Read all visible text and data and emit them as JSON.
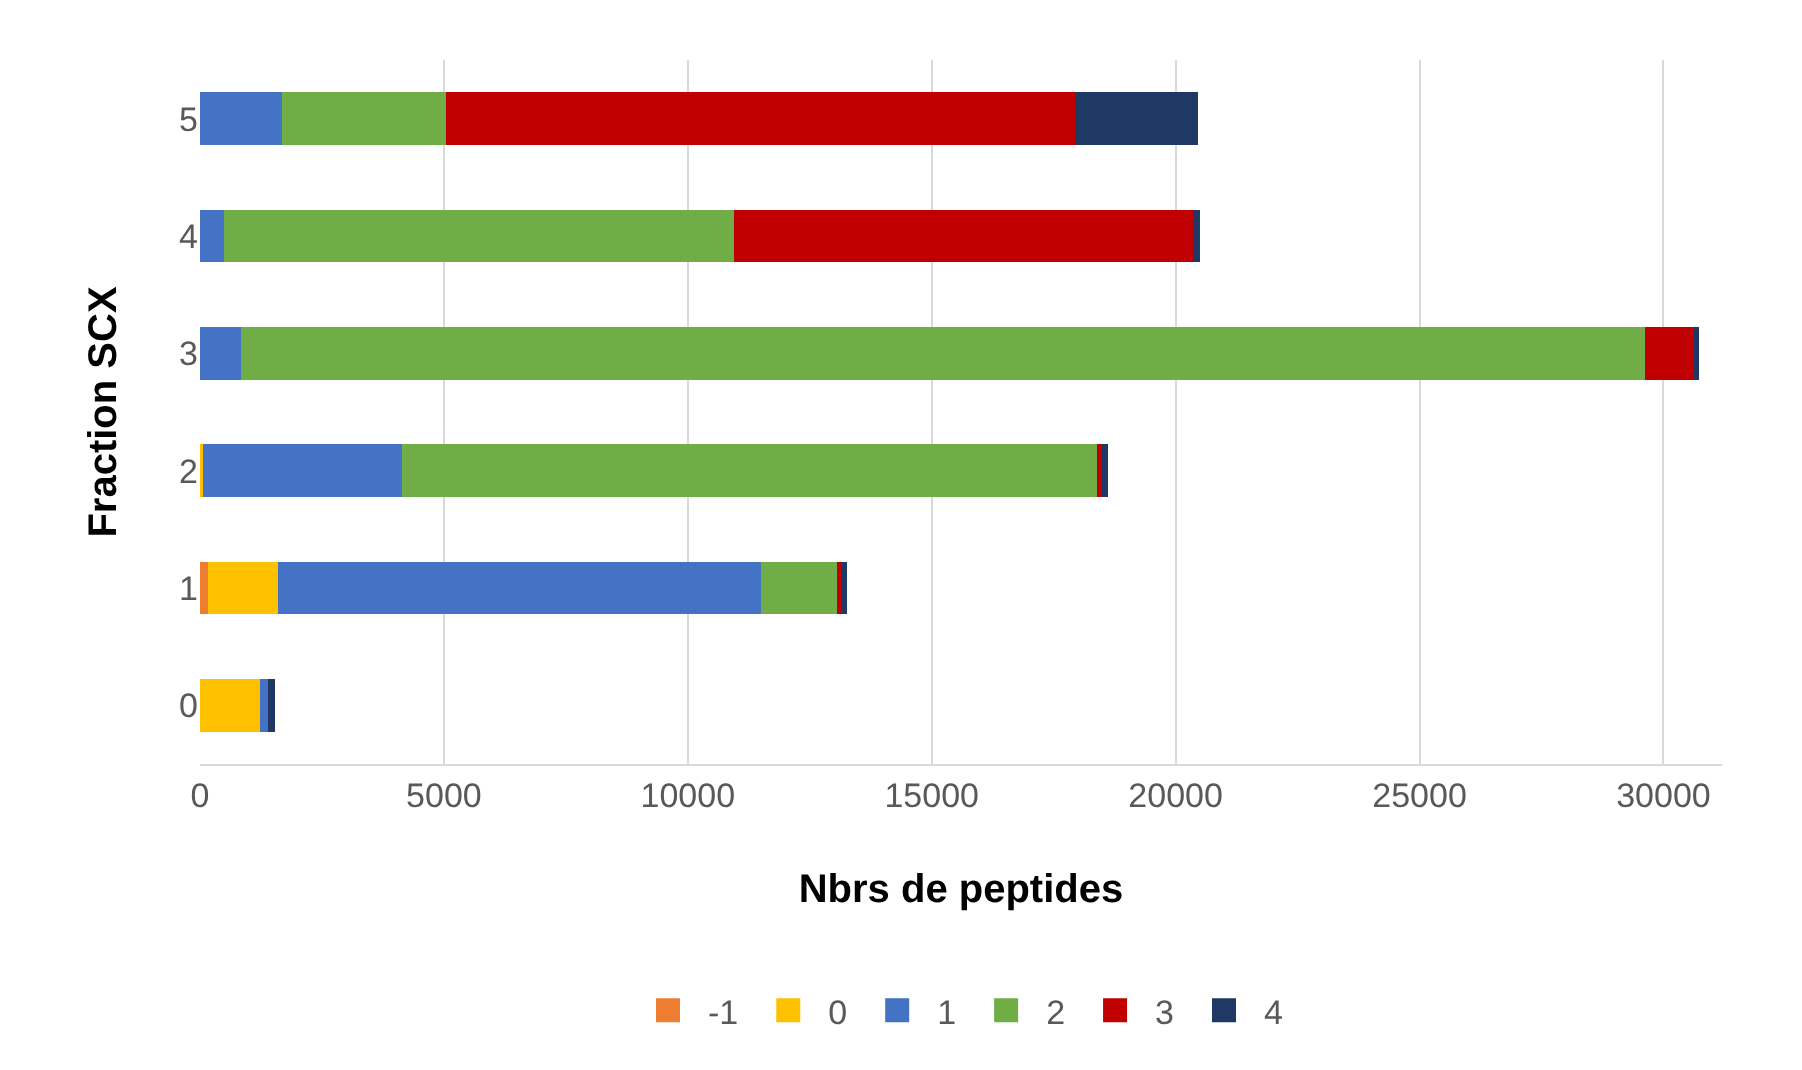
{
  "chart_data": {
    "type": "bar",
    "orientation": "horizontal",
    "stacked": true,
    "xlabel": "Nbrs de peptides",
    "ylabel": "Fraction SCX",
    "categories": [
      "5",
      "4",
      "3",
      "2",
      "1",
      "0"
    ],
    "series": [
      {
        "name": "-1",
        "color": "#ed7d31",
        "values": [
          null,
          null,
          null,
          null,
          170,
          null
        ]
      },
      {
        "name": "0",
        "color": "#ffc000",
        "values": [
          null,
          null,
          null,
          70,
          1430,
          1220
        ]
      },
      {
        "name": "1",
        "color": "#4472c4",
        "values": [
          1680,
          500,
          840,
          4080,
          9900,
          180
        ]
      },
      {
        "name": "2",
        "color": "#70ad47",
        "values": [
          3360,
          10440,
          28780,
          14240,
          1550,
          null
        ]
      },
      {
        "name": "3",
        "color": "#c00000",
        "values": [
          12890,
          9410,
          1010,
          140,
          120,
          null
        ]
      },
      {
        "name": "4",
        "color": "#203864",
        "values": [
          2520,
          140,
          90,
          80,
          100,
          130
        ]
      }
    ],
    "xlim": [
      0,
      31200
    ],
    "xticks": [
      0,
      5000,
      10000,
      15000,
      20000,
      25000,
      30000
    ],
    "grid": "x",
    "legend": "bottom"
  }
}
